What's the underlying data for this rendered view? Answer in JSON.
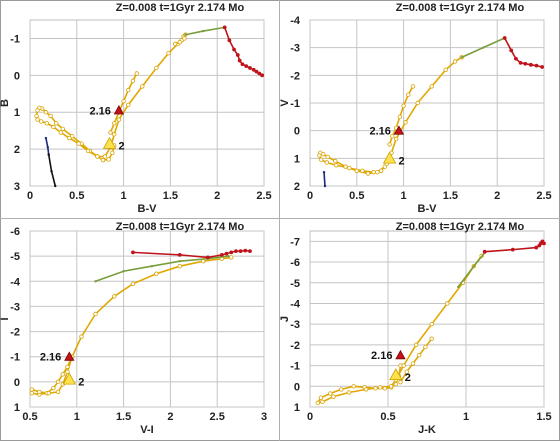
{
  "chart_data": [
    {
      "type": "scatter",
      "title": "Z=0.008  t=1Gyr  2.174 Mo",
      "xlabel": "B-V",
      "ylabel": "B",
      "xlim": [
        0,
        2.5
      ],
      "ylim": [
        3,
        -1.5
      ],
      "xticks": [
        "0",
        "0.5",
        "1",
        "1.5",
        "2",
        "2.5"
      ],
      "yticks": [
        "-1",
        "0",
        "1",
        "2",
        "3"
      ],
      "ytick_values": [
        -1,
        0,
        1,
        2,
        3
      ],
      "grid": true,
      "series": [
        {
          "color": "#e0a800",
          "x": [
            0.86,
            0.9,
            0.95,
            1.0,
            1.05,
            1.1,
            1.14
          ],
          "y": [
            1.55,
            1.3,
            1.0,
            0.7,
            0.4,
            0.15,
            -0.05
          ]
        },
        {
          "color": "#e0a800",
          "x": [
            0.9,
            0.88,
            0.84,
            0.78,
            0.72,
            0.64,
            0.55,
            0.45,
            0.35,
            0.28,
            0.22,
            0.17,
            0.13,
            0.1,
            0.08,
            0.07,
            0.08,
            0.12,
            0.18,
            0.25,
            0.33,
            0.42,
            0.52,
            0.62,
            0.72,
            0.8,
            0.86,
            0.9,
            0.95,
            1.05,
            1.2,
            1.35,
            1.48,
            1.58,
            1.62
          ],
          "y": [
            1.9,
            2.1,
            2.28,
            2.3,
            2.2,
            2.05,
            1.85,
            1.65,
            1.45,
            1.3,
            1.1,
            1.0,
            0.9,
            0.88,
            0.95,
            1.1,
            1.2,
            1.25,
            1.3,
            1.4,
            1.55,
            1.7,
            1.85,
            2.05,
            2.2,
            2.2,
            1.95,
            1.6,
            1.2,
            0.8,
            0.3,
            -0.2,
            -0.6,
            -0.85,
            -0.95
          ]
        },
        {
          "color": "#e0a800",
          "x": [
            1.62,
            1.64,
            1.66,
            1.65,
            1.6,
            1.55
          ],
          "y": [
            -0.95,
            -1.05,
            -1.1,
            -1.0,
            -0.9,
            -0.85
          ]
        },
        {
          "color": "#7a9e3c",
          "x": [
            1.66,
            1.85,
            2.08
          ],
          "y": [
            -1.1,
            -1.2,
            -1.3
          ]
        },
        {
          "color": "#c0141c",
          "x": [
            2.08,
            2.13,
            2.18,
            2.22,
            2.24,
            2.27,
            2.31,
            2.35,
            2.39,
            2.42,
            2.45,
            2.48
          ],
          "y": [
            -1.3,
            -0.95,
            -0.7,
            -0.55,
            -0.4,
            -0.3,
            -0.25,
            -0.2,
            -0.15,
            -0.1,
            -0.05,
            0.0
          ]
        },
        {
          "color": "#1a2a7a",
          "x": [
            0.17,
            0.19,
            0.2
          ],
          "y": [
            1.7,
            1.95,
            2.15
          ]
        },
        {
          "color": "#111111",
          "x": [
            0.2,
            0.23,
            0.27
          ],
          "y": [
            2.15,
            2.6,
            3.0
          ]
        }
      ],
      "annotations": [
        {
          "text": "2.16",
          "x": 0.95,
          "y": 0.95
        },
        {
          "text": "2",
          "x": 0.85,
          "y": 1.85
        }
      ]
    },
    {
      "type": "scatter",
      "title": "Z=0.008  t=1Gyr  2.174 Mo",
      "xlabel": "B-V",
      "ylabel": "V",
      "xlim": [
        0,
        2.5
      ],
      "ylim": [
        2,
        -4
      ],
      "xticks": [
        "0",
        "0.5",
        "1",
        "1.5",
        "2",
        "2.5"
      ],
      "yticks": [
        "-4",
        "-3",
        "-2",
        "-1",
        "0",
        "1",
        "2"
      ],
      "ytick_values": [
        -4,
        -3,
        -2,
        -1,
        0,
        1,
        2
      ],
      "grid": true,
      "series": [
        {
          "color": "#e0a800",
          "x": [
            0.85,
            0.88,
            0.92,
            0.96,
            1.0,
            1.05,
            1.1
          ],
          "y": [
            0.5,
            0.2,
            -0.1,
            -0.5,
            -0.9,
            -1.3,
            -1.6
          ]
        },
        {
          "color": "#e0a800",
          "x": [
            0.85,
            0.8,
            0.72,
            0.62,
            0.5,
            0.38,
            0.27,
            0.19,
            0.14,
            0.11,
            0.1,
            0.12,
            0.18,
            0.28,
            0.42,
            0.56,
            0.68,
            0.76,
            0.82,
            0.87,
            0.92,
            1.02,
            1.15,
            1.3,
            1.45,
            1.55,
            1.62
          ],
          "y": [
            1.1,
            1.3,
            1.5,
            1.55,
            1.45,
            1.3,
            1.1,
            0.95,
            0.85,
            0.8,
            0.9,
            1.05,
            1.15,
            1.25,
            1.35,
            1.45,
            1.5,
            1.45,
            1.2,
            0.8,
            0.3,
            -0.3,
            -1.0,
            -1.6,
            -2.2,
            -2.5,
            -2.65
          ]
        },
        {
          "color": "#7a9e3c",
          "x": [
            1.62,
            1.85,
            2.08
          ],
          "y": [
            -2.65,
            -3.0,
            -3.35
          ]
        },
        {
          "color": "#c0141c",
          "x": [
            2.08,
            2.15,
            2.2,
            2.25,
            2.3,
            2.36,
            2.42,
            2.48
          ],
          "y": [
            -3.35,
            -2.9,
            -2.6,
            -2.45,
            -2.42,
            -2.38,
            -2.35,
            -2.3
          ]
        },
        {
          "color": "#1a2a7a",
          "x": [
            0.15,
            0.16
          ],
          "y": [
            1.5,
            2.0
          ]
        }
      ],
      "annotations": [
        {
          "text": "2.16",
          "x": 0.95,
          "y": 0.0
        },
        {
          "text": "2",
          "x": 0.85,
          "y": 1.0
        }
      ]
    },
    {
      "type": "scatter",
      "title": "Z=0.008  t=1Gyr  2.174 Mo",
      "xlabel": "V-I",
      "ylabel": "I",
      "xlim": [
        0.5,
        3
      ],
      "ylim": [
        1,
        -6
      ],
      "xticks": [
        "0.5",
        "1",
        "1.5",
        "2",
        "2.5",
        "3"
      ],
      "yticks": [
        "-6",
        "-5",
        "-4",
        "-3",
        "-2",
        "-1",
        "0",
        "1"
      ],
      "ytick_values": [
        -6,
        -5,
        -4,
        -3,
        -2,
        -1,
        0,
        1
      ],
      "grid": true,
      "series": [
        {
          "color": "#e0a800",
          "x": [
            0.95,
            0.9,
            0.85,
            0.8,
            0.75,
            0.68,
            0.6,
            0.52,
            0.52,
            0.6,
            0.7,
            0.8,
            0.85,
            0.9,
            0.95,
            1.05,
            1.2,
            1.4,
            1.6,
            1.85,
            2.1,
            2.35,
            2.55,
            2.65
          ],
          "y": [
            -1.0,
            -0.6,
            -0.3,
            0.0,
            0.25,
            0.45,
            0.5,
            0.45,
            0.3,
            0.4,
            0.45,
            0.4,
            0.1,
            -0.4,
            -1.0,
            -1.8,
            -2.7,
            -3.4,
            -3.9,
            -4.3,
            -4.6,
            -4.8,
            -4.9,
            -4.95
          ]
        },
        {
          "color": "#7a9e3c",
          "x": [
            1.2,
            1.5,
            1.8,
            2.1,
            2.4,
            2.62
          ],
          "y": [
            -4.0,
            -4.4,
            -4.6,
            -4.8,
            -4.9,
            -5.0
          ]
        },
        {
          "color": "#c0141c",
          "x": [
            1.6,
            2.1,
            2.4,
            2.55,
            2.6,
            2.65,
            2.7,
            2.75,
            2.8,
            2.85
          ],
          "y": [
            -5.15,
            -5.05,
            -4.95,
            -5.05,
            -5.1,
            -5.15,
            -5.2,
            -5.2,
            -5.22,
            -5.2
          ]
        }
      ],
      "annotations": [
        {
          "text": "2.16",
          "x": 0.92,
          "y": -1.0
        },
        {
          "text": "2",
          "x": 0.92,
          "y": -0.1
        }
      ]
    },
    {
      "type": "scatter",
      "title": "Z=0.008  t=1Gyr  2.174 Mo",
      "xlabel": "J-K",
      "ylabel": "J",
      "xlim": [
        0,
        1.5
      ],
      "ylim": [
        1,
        -7.5
      ],
      "xticks": [
        "0",
        "0.5",
        "1",
        "1.5"
      ],
      "yticks": [
        "-7",
        "-6",
        "-5",
        "-4",
        "-3",
        "-2",
        "-1",
        "0",
        "1"
      ],
      "ytick_values": [
        -7,
        -6,
        -5,
        -4,
        -3,
        -2,
        -1,
        0,
        1
      ],
      "grid": true,
      "series": [
        {
          "color": "#e0a800",
          "x": [
            0.58,
            0.57,
            0.55,
            0.52,
            0.48,
            0.42,
            0.35,
            0.28,
            0.2,
            0.13,
            0.07,
            0.05,
            0.08,
            0.15,
            0.25,
            0.36,
            0.45,
            0.52,
            0.55,
            0.6,
            0.68,
            0.78,
            0.88,
            0.98,
            1.05,
            1.1
          ],
          "y": [
            -1.0,
            -0.5,
            -0.1,
            0.05,
            0.1,
            0.1,
            0.05,
            0.0,
            0.15,
            0.35,
            0.55,
            0.8,
            0.75,
            0.5,
            0.3,
            0.15,
            0.05,
            0.0,
            -0.3,
            -1.0,
            -2.0,
            -3.0,
            -4.0,
            -5.0,
            -5.8,
            -6.3
          ]
        },
        {
          "color": "#e0a800",
          "x": [
            0.58,
            0.62,
            0.66,
            0.7,
            0.74,
            0.78
          ],
          "y": [
            -0.2,
            -0.7,
            -1.1,
            -1.5,
            -1.9,
            -2.3
          ]
        },
        {
          "color": "#7a9e3c",
          "x": [
            0.95,
            1.05,
            1.12
          ],
          "y": [
            -4.8,
            -5.8,
            -6.45
          ]
        },
        {
          "color": "#c0141c",
          "x": [
            1.12,
            1.3,
            1.45,
            1.47,
            1.48,
            1.49,
            1.5
          ],
          "y": [
            -6.5,
            -6.6,
            -6.7,
            -6.8,
            -6.9,
            -7.0,
            -6.9
          ]
        }
      ],
      "annotations": [
        {
          "text": "2.16",
          "x": 0.58,
          "y": -1.5
        },
        {
          "text": "2",
          "x": 0.55,
          "y": -0.55
        }
      ]
    }
  ]
}
